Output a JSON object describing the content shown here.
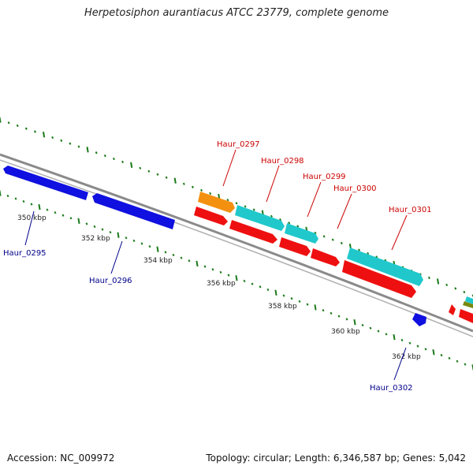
{
  "title": "Herpetosiphon aurantiacus ATCC 23779, complete genome",
  "footer": {
    "accession": "Accession: NC_009972",
    "topology": "Topology: circular; Length: 6,346,587 bp; Genes: 5,042"
  },
  "colors": {
    "backbone": "#8a8a8a",
    "tick": "#1a7a1a",
    "reverse_label": "#00008b",
    "forward_label": "#cc0000",
    "blue_feature": "#1010e0",
    "red_feature": "#ee1010",
    "cyan_feature": "#20c8cc",
    "orange_feature": "#f39010"
  },
  "scale_labels": [
    "350 kbp",
    "352 kbp",
    "354 kbp",
    "356 kbp",
    "358 kbp",
    "360 kbp",
    "362 kbp"
  ],
  "genes": [
    {
      "name": "Haur_0295",
      "strand": "reverse"
    },
    {
      "name": "Haur_0296",
      "strand": "reverse"
    },
    {
      "name": "Haur_0297",
      "strand": "forward"
    },
    {
      "name": "Haur_0298",
      "strand": "forward"
    },
    {
      "name": "Haur_0299",
      "strand": "forward"
    },
    {
      "name": "Haur_0300",
      "strand": "forward"
    },
    {
      "name": "Haur_0301",
      "strand": "forward"
    },
    {
      "name": "Haur_0302",
      "strand": "reverse"
    }
  ]
}
